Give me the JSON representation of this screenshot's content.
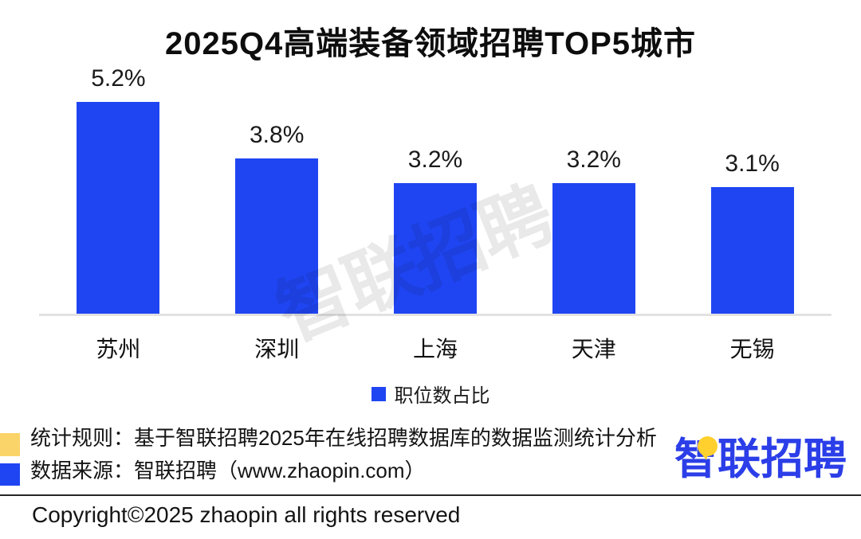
{
  "title": "2025Q4高端装备领域招聘TOP5城市",
  "chart_data": {
    "type": "bar",
    "categories": [
      "苏州",
      "深圳",
      "上海",
      "天津",
      "无锡"
    ],
    "values": [
      5.2,
      3.8,
      3.2,
      3.2,
      3.1
    ],
    "value_labels": [
      "5.2%",
      "3.8%",
      "3.2%",
      "3.2%",
      "3.1%"
    ],
    "series_name": "职位数占比",
    "title": "2025Q4高端装备领域招聘TOP5城市",
    "xlabel": "",
    "ylabel": "",
    "ylim": [
      0,
      5.5
    ],
    "grid": false,
    "legend_position": "bottom",
    "bar_color": "#1f45f2"
  },
  "legend": {
    "label": "职位数占比",
    "swatch_color": "#1f45f2"
  },
  "watermark": {
    "text": "智联招聘"
  },
  "footer": {
    "note1": "统计规则：基于智联招聘2025年在线招聘数据库的数据监测统计分析",
    "note2": "数据来源：智联招聘（www.zhaopin.com）",
    "note1_marker_color": "#fbd469",
    "note2_marker_color": "#1f45f2",
    "logo_text": "智联招聘",
    "copyright": "Copyright©2025 zhaopin all rights reserved"
  },
  "colors": {
    "bar": "#1f45f2",
    "baseline": "#e2e2e2",
    "logo_blue": "#2b3ee8",
    "logo_yellow": "#ffd02e"
  }
}
